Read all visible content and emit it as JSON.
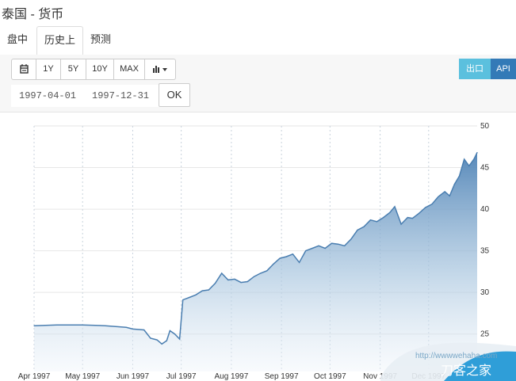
{
  "page_title": "泰国 - 货币",
  "tabs": [
    {
      "label": "盘中",
      "active": false
    },
    {
      "label": "历史上",
      "active": true
    },
    {
      "label": "预测",
      "active": false
    }
  ],
  "range_buttons": [
    "1Y",
    "5Y",
    "10Y",
    "MAX"
  ],
  "icons": {
    "calendar": "calendar-icon",
    "chart_type": "bar-chart-icon"
  },
  "export_buttons": [
    {
      "label": "出口",
      "color": "#5bc0de"
    },
    {
      "label": "API",
      "color": "#337ab7"
    }
  ],
  "date_range": {
    "start": "1997-04-01",
    "end": "1997-12-31",
    "ok_label": "OK"
  },
  "watermark": {
    "url": "http://wwwwehaha.com",
    "name": "刀客之家"
  },
  "chart_data": {
    "type": "area",
    "x_tick_labels": [
      "Apr 1997",
      "May 1997",
      "Jun 1997",
      "Jul 1997",
      "Aug 1997",
      "Sep 1997",
      "Oct 1997",
      "Nov 1997",
      "Dec 1997"
    ],
    "y_ticks": [
      25,
      30,
      35,
      40,
      45,
      50
    ],
    "ylim": [
      20.5,
      50
    ],
    "grid": true,
    "line_color": "#4a7eb0",
    "series": [
      {
        "x": [
          "1997-04-01",
          "1997-04-15",
          "1997-05-01",
          "1997-05-15",
          "1997-05-28",
          "1997-06-01",
          "1997-06-08",
          "1997-06-12",
          "1997-06-16",
          "1997-06-19",
          "1997-06-22",
          "1997-06-24",
          "1997-06-27",
          "1997-06-30",
          "1997-07-02",
          "1997-07-06",
          "1997-07-10",
          "1997-07-14",
          "1997-07-18",
          "1997-07-22",
          "1997-07-26",
          "1997-07-30",
          "1997-08-03",
          "1997-08-07",
          "1997-08-11",
          "1997-08-15",
          "1997-08-19",
          "1997-08-23",
          "1997-08-27",
          "1997-08-31",
          "1997-09-04",
          "1997-09-08",
          "1997-09-12",
          "1997-09-16",
          "1997-09-20",
          "1997-09-24",
          "1997-09-28",
          "1997-10-02",
          "1997-10-06",
          "1997-10-10",
          "1997-10-14",
          "1997-10-18",
          "1997-10-22",
          "1997-10-26",
          "1997-10-30",
          "1997-11-03",
          "1997-11-07",
          "1997-11-10",
          "1997-11-14",
          "1997-11-18",
          "1997-11-21",
          "1997-11-25",
          "1997-11-29",
          "1997-12-03",
          "1997-12-07",
          "1997-12-11",
          "1997-12-14",
          "1997-12-17",
          "1997-12-20",
          "1997-12-23",
          "1997-12-26",
          "1997-12-29",
          "1997-12-31"
        ],
        "values": [
          26.0,
          26.1,
          26.1,
          26.0,
          25.8,
          25.6,
          25.5,
          24.5,
          24.3,
          23.8,
          24.2,
          25.4,
          25.0,
          24.4,
          29.1,
          29.4,
          29.7,
          30.2,
          30.3,
          31.1,
          32.3,
          31.5,
          31.6,
          31.2,
          31.3,
          31.9,
          32.3,
          32.6,
          33.4,
          34.1,
          34.3,
          34.6,
          33.6,
          35.0,
          35.3,
          35.6,
          35.3,
          35.9,
          35.8,
          35.6,
          36.4,
          37.5,
          37.9,
          38.7,
          38.5,
          39.0,
          39.6,
          40.3,
          38.2,
          39.0,
          38.9,
          39.5,
          40.2,
          40.6,
          41.5,
          42.1,
          41.6,
          43.0,
          44.0,
          46.0,
          45.2,
          46.0,
          46.8
        ]
      }
    ]
  }
}
